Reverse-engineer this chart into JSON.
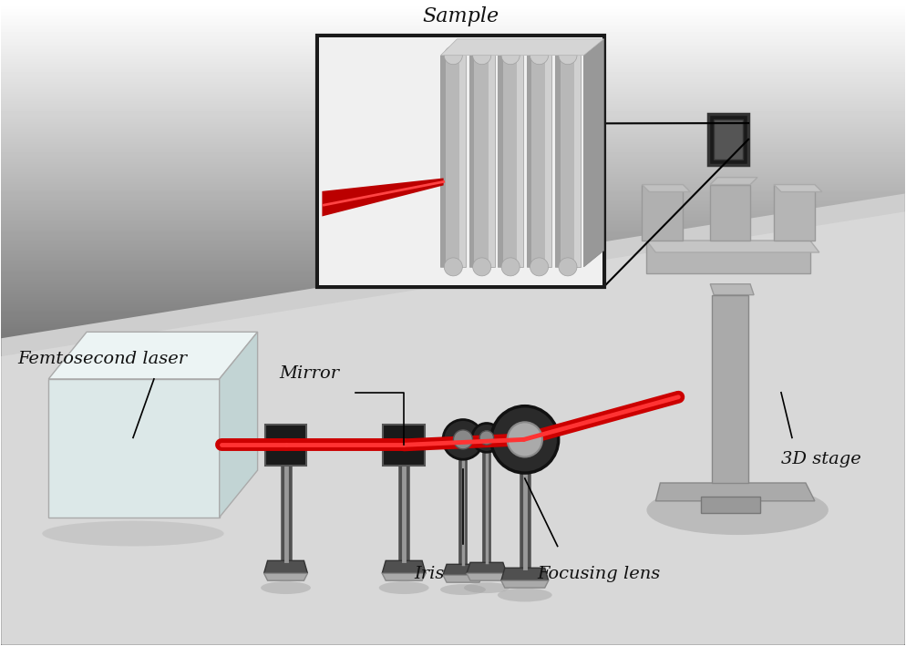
{
  "bg_top_color": "#d5d5d5",
  "bg_bottom_color": "#a8a8a8",
  "floor_color": "#c8c8c8",
  "floor_light_color": "#dcdcdc",
  "wall_color": "#c0c0c0",
  "laser_face_color": "#dce8e8",
  "laser_top_color": "#e8f0f0",
  "laser_right_color": "#c8d8d8",
  "beam_color": "#cc0000",
  "beam_highlight": "#ff5555",
  "mirror_color": "#1a1a1a",
  "post_dark": "#444444",
  "post_light": "#888888",
  "stage_color": "#aaaaaa",
  "stage_shadow": "#888888",
  "inset_bg": "#ffffff",
  "ridge_color": "#b0b0b0",
  "ridge_dark": "#888888",
  "ridge_light": "#d0d0d0",
  "labels": {
    "femtosecond_laser": "Femtosecond laser",
    "mirror": "Mirror",
    "iris": "Iris",
    "focusing_lens": "Focusing lens",
    "sample": "Sample",
    "stage_3d": "3D stage"
  },
  "font_size": 13,
  "font_color": "#111111"
}
